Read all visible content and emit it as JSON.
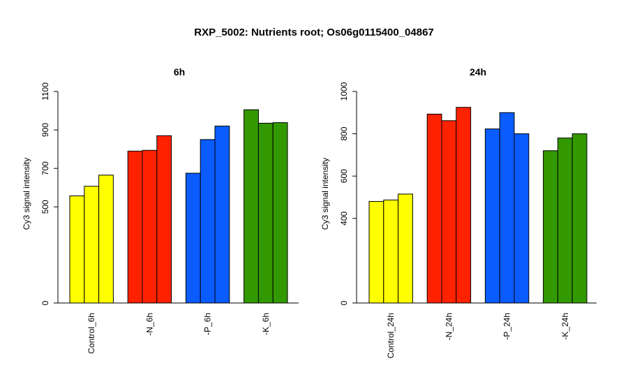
{
  "page_title": "RXP_5002: Nutrients root; Os06g0115400_04867",
  "chart_data": [
    {
      "type": "bar",
      "title": "6h",
      "ylabel": "Cy3 signal intensity",
      "xlabel": "",
      "ylim": [
        0,
        1100
      ],
      "yticks": [
        0,
        500,
        700,
        900,
        1100
      ],
      "grid": false,
      "groups": [
        "Control_6h",
        "-N_6h",
        "-P_6h",
        "-K_6h"
      ],
      "series": [
        {
          "values": [
            557,
            790,
            675,
            1005
          ]
        },
        {
          "values": [
            607,
            794,
            850,
            935
          ]
        },
        {
          "values": [
            665,
            870,
            920,
            938
          ]
        }
      ],
      "colors": [
        "#ffff00",
        "#ff2200",
        "#0a5cff",
        "#339900"
      ]
    },
    {
      "type": "bar",
      "title": "24h",
      "ylabel": "Cy3 signal intensity",
      "xlabel": "",
      "ylim": [
        0,
        1000
      ],
      "yticks": [
        0,
        400,
        600,
        800,
        1000
      ],
      "grid": false,
      "groups": [
        "Control_24h",
        "-N_24h",
        "-P_24h",
        "-K_24h"
      ],
      "series": [
        {
          "values": [
            480,
            893,
            823,
            720
          ]
        },
        {
          "values": [
            487,
            862,
            900,
            780
          ]
        },
        {
          "values": [
            515,
            925,
            800,
            800
          ]
        }
      ],
      "colors": [
        "#ffff00",
        "#ff2200",
        "#0a5cff",
        "#339900"
      ]
    }
  ]
}
